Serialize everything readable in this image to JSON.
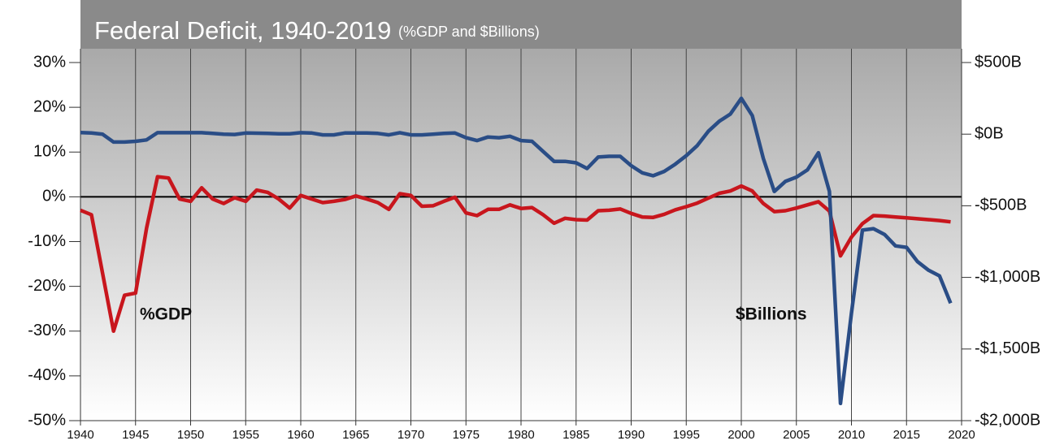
{
  "chart_data": {
    "type": "line",
    "title": "Federal Deficit, 1940-2019",
    "subtitle": "(%GDP and $Billions)",
    "x": [
      1940,
      1941,
      1942,
      1943,
      1944,
      1945,
      1946,
      1947,
      1948,
      1949,
      1950,
      1951,
      1952,
      1953,
      1954,
      1955,
      1956,
      1957,
      1958,
      1959,
      1960,
      1961,
      1962,
      1963,
      1964,
      1965,
      1966,
      1967,
      1968,
      1969,
      1970,
      1971,
      1972,
      1973,
      1974,
      1975,
      1976,
      1977,
      1978,
      1979,
      1980,
      1981,
      1982,
      1983,
      1984,
      1985,
      1986,
      1987,
      1988,
      1989,
      1990,
      1991,
      1992,
      1993,
      1994,
      1995,
      1996,
      1997,
      1998,
      1999,
      2000,
      2001,
      2002,
      2003,
      2004,
      2005,
      2006,
      2007,
      2008,
      2009,
      2010,
      2011,
      2012,
      2013,
      2014,
      2015,
      2016,
      2017,
      2018,
      2019
    ],
    "series": [
      {
        "name": "%GDP",
        "color": "#c8161d",
        "axis": "y",
        "values": [
          -3,
          -4,
          -17,
          -30,
          -22,
          -21.5,
          -7,
          4.5,
          4.2,
          -0.5,
          -1,
          2,
          -0.5,
          -1.5,
          -0.2,
          -1,
          1.5,
          1,
          -0.5,
          -2.5,
          0.3,
          -0.5,
          -1.3,
          -1,
          -0.6,
          0.2,
          -0.5,
          -1.3,
          -2.8,
          0.7,
          0.3,
          -2.1,
          -2,
          -1,
          -0.1,
          -3.6,
          -4.2,
          -2.8,
          -2.8,
          -1.8,
          -2.6,
          -2.4,
          -4,
          -5.9,
          -4.8,
          -5.1,
          -5.2,
          -3.1,
          -3,
          -2.7,
          -3.7,
          -4.5,
          -4.6,
          -3.9,
          -2.9,
          -2.2,
          -1.4,
          -0.3,
          0.8,
          1.3,
          2.4,
          1.3,
          -1.5,
          -3.3,
          -3.1,
          -2.5,
          -1.8,
          -1.1,
          -3.2,
          -13.2,
          -9,
          -6,
          -4.2,
          -4.3,
          -4.5,
          -4.7,
          -4.9,
          -5.1,
          -5.3,
          -5.6
        ]
      },
      {
        "name": "$Billions",
        "color": "#2a4d86",
        "axis": "y2",
        "values": [
          11,
          8,
          0,
          -55,
          -55,
          -50,
          -40,
          10,
          10,
          10,
          10,
          10,
          5,
          0,
          -2,
          8,
          7,
          5,
          3,
          3,
          10,
          8,
          -5,
          -5,
          8,
          8,
          8,
          5,
          -5,
          10,
          -5,
          -5,
          0,
          5,
          8,
          -25,
          -45,
          -20,
          -25,
          -15,
          -45,
          -50,
          -120,
          -190,
          -190,
          -200,
          -240,
          -160,
          -155,
          -155,
          -220,
          -270,
          -290,
          -260,
          -210,
          -150,
          -80,
          20,
          90,
          140,
          250,
          130,
          -170,
          -400,
          -330,
          -300,
          -250,
          -130,
          -400,
          -1880,
          -1250,
          -670,
          -660,
          -700,
          -780,
          -790,
          -890,
          -950,
          -990,
          -1180
        ]
      }
    ],
    "xlim": [
      1940,
      2020
    ],
    "xticks": [
      1940,
      1945,
      1950,
      1955,
      1960,
      1965,
      1970,
      1975,
      1980,
      1985,
      1990,
      1995,
      2000,
      2005,
      2010,
      2015,
      2020
    ],
    "ylim": [
      -50,
      30
    ],
    "yticks": [
      {
        "value": -50,
        "label": "-50%"
      },
      {
        "value": -40,
        "label": "-40%"
      },
      {
        "value": -30,
        "label": "-30%"
      },
      {
        "value": -20,
        "label": "-20%"
      },
      {
        "value": -10,
        "label": "-10%"
      },
      {
        "value": 0,
        "label": "0%"
      },
      {
        "value": 10,
        "label": "10%"
      },
      {
        "value": 20,
        "label": "20%"
      },
      {
        "value": 30,
        "label": "30%"
      }
    ],
    "y2lim": [
      -2000,
      500
    ],
    "y2ticks": [
      {
        "value": -2000,
        "label": "-$2,000B"
      },
      {
        "value": -1500,
        "label": "-$1,500B"
      },
      {
        "value": -1000,
        "label": "-$1,000B"
      },
      {
        "value": -500,
        "label": "-$500B"
      },
      {
        "value": 0,
        "label": "$0B"
      },
      {
        "value": 500,
        "label": "$500B"
      }
    ],
    "grid": true
  }
}
